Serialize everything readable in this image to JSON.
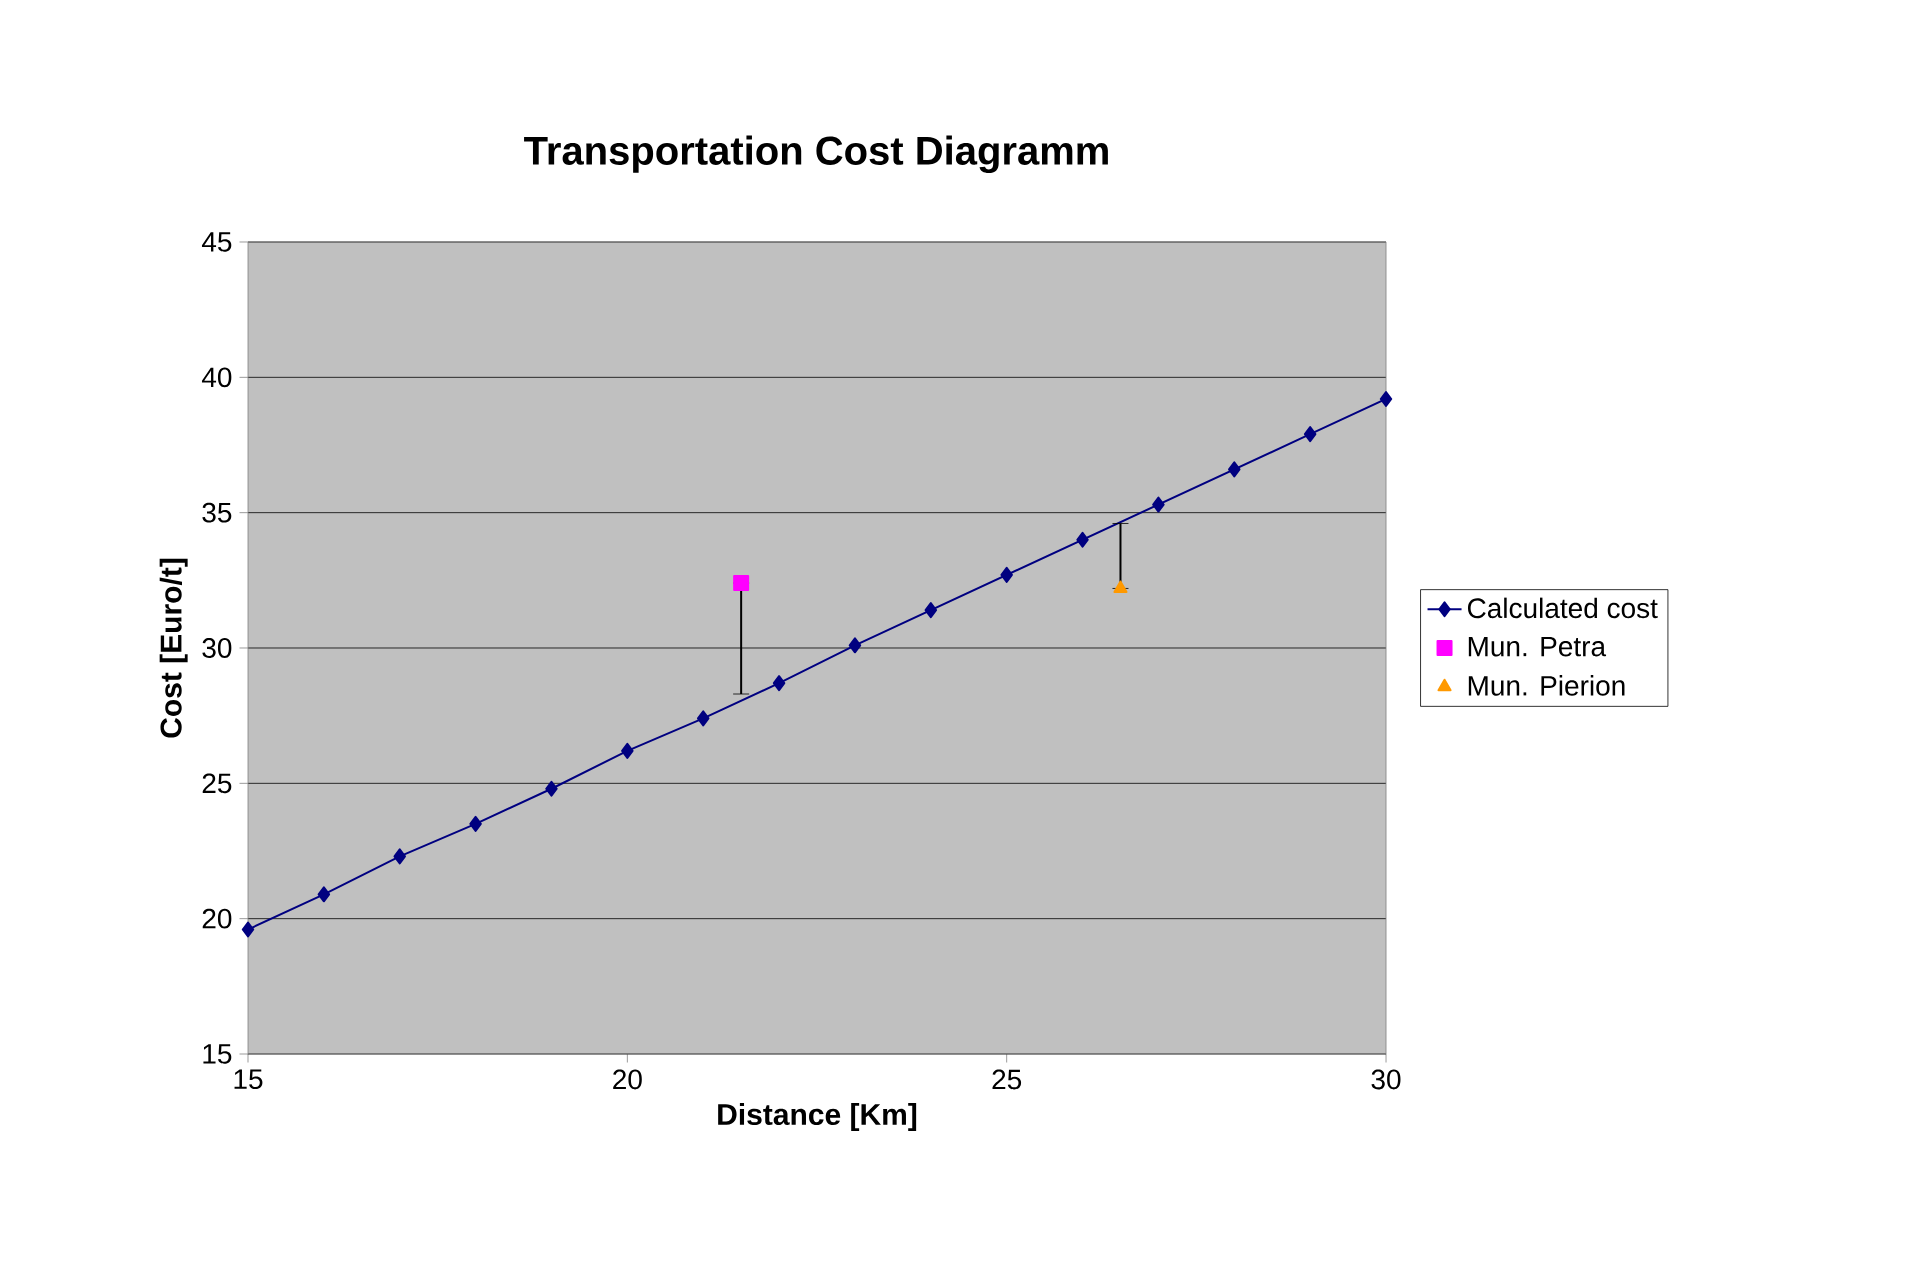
{
  "chart_data": {
    "type": "line",
    "title": "Transportation Cost Diagramm",
    "xlabel": "Distance [Km]",
    "ylabel": "Cost [Euro/t]",
    "xlim": [
      15,
      30
    ],
    "ylim": [
      15,
      45
    ],
    "xticks": [
      15,
      20,
      25,
      30
    ],
    "yticks": [
      15,
      20,
      25,
      30,
      35,
      40,
      45
    ],
    "grid": "y",
    "legend": "right",
    "series": [
      {
        "name": "Calculated cost",
        "color": "#000080",
        "marker": "diamond",
        "x": [
          15,
          16,
          17,
          18,
          19,
          20,
          21,
          22,
          23,
          24,
          25,
          26,
          27,
          28,
          29,
          30
        ],
        "values": [
          19.6,
          20.9,
          22.3,
          23.5,
          24.8,
          26.2,
          27.4,
          28.7,
          30.1,
          31.4,
          32.7,
          34.0,
          35.3,
          36.6,
          37.9,
          39.2
        ]
      },
      {
        "name": "Mun. Petra",
        "type": "scatter",
        "color": "#ff00ff",
        "marker": "square",
        "x": [
          21.5
        ],
        "values": [
          32.4
        ],
        "errors": [
          [
            28.3,
            32.4
          ]
        ]
      },
      {
        "name": "Mun. Pierion",
        "type": "scatter",
        "color": "#ff9900",
        "marker": "triangle",
        "x": [
          26.5
        ],
        "values": [
          32.2
        ],
        "errors": [
          [
            32.2,
            34.6
          ]
        ]
      }
    ]
  }
}
